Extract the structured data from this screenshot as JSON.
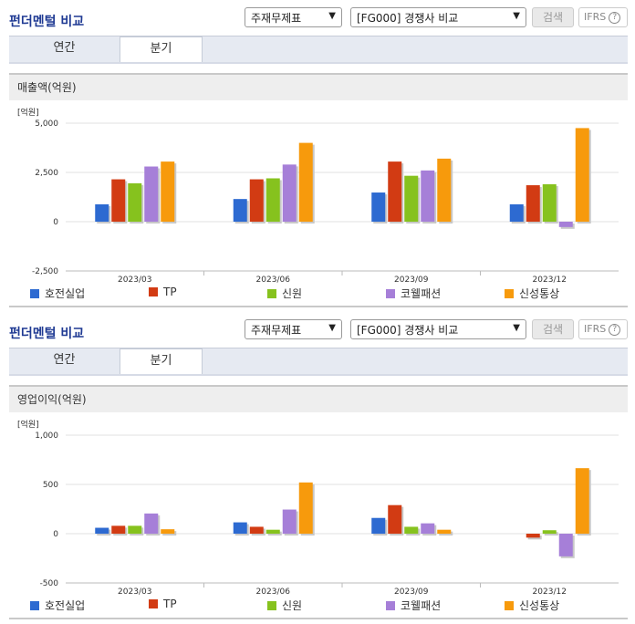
{
  "sections": [
    {
      "title": "펀더멘털 비교",
      "select1": "주재무제표",
      "select2": "[FG000] 경쟁사 비교",
      "search_label": "검색",
      "ifrs_label": "IFRS",
      "tabs": [
        "연간",
        "분기"
      ],
      "panel_title": "매출액(억원)"
    },
    {
      "title": "펀더멘털 비교",
      "select1": "주재무제표",
      "select2": "[FG000] 경쟁사 비교",
      "search_label": "검색",
      "ifrs_label": "IFRS",
      "tabs": [
        "연간",
        "분기"
      ],
      "panel_title": "영업이익(억원)"
    }
  ],
  "colors": {
    "호전실업": "#2d6ad1",
    "TP": "#d23b13",
    "신원": "#86c21e",
    "코웰패션": "#a67fd8",
    "신성통상": "#f79a0c"
  },
  "chart_data": [
    {
      "type": "bar",
      "unit_label": "[억원]",
      "categories": [
        "2023/03",
        "2023/06",
        "2023/09",
        "2023/12"
      ],
      "ylim": [
        -2500,
        5000
      ],
      "yticks": [
        "5,000",
        "2,500",
        "0",
        "-2,500"
      ],
      "ytick_values": [
        5000,
        2500,
        0,
        -2500
      ],
      "series": [
        {
          "name": "호전실업",
          "values": [
            880,
            1150,
            1480,
            880
          ]
        },
        {
          "name": "TP",
          "values": [
            2150,
            2150,
            3050,
            1850
          ]
        },
        {
          "name": "신원",
          "values": [
            1950,
            2200,
            2330,
            1900
          ]
        },
        {
          "name": "코웰패션",
          "values": [
            2800,
            2900,
            2600,
            -270
          ]
        },
        {
          "name": "신성통상",
          "values": [
            3050,
            4000,
            3200,
            4750
          ]
        }
      ]
    },
    {
      "type": "bar",
      "unit_label": "[억원]",
      "categories": [
        "2023/03",
        "2023/06",
        "2023/09",
        "2023/12"
      ],
      "ylim": [
        -500,
        1000
      ],
      "yticks": [
        "1,000",
        "500",
        "0",
        "-500"
      ],
      "ytick_values": [
        1000,
        500,
        0,
        -500
      ],
      "series": [
        {
          "name": "호전실업",
          "values": [
            60,
            115,
            160,
            0
          ]
        },
        {
          "name": "TP",
          "values": [
            80,
            70,
            290,
            -40
          ]
        },
        {
          "name": "신원",
          "values": [
            80,
            40,
            70,
            35
          ]
        },
        {
          "name": "코웰패션",
          "values": [
            205,
            245,
            105,
            -230
          ]
        },
        {
          "name": "신성통상",
          "values": [
            45,
            520,
            40,
            665
          ]
        }
      ]
    }
  ]
}
